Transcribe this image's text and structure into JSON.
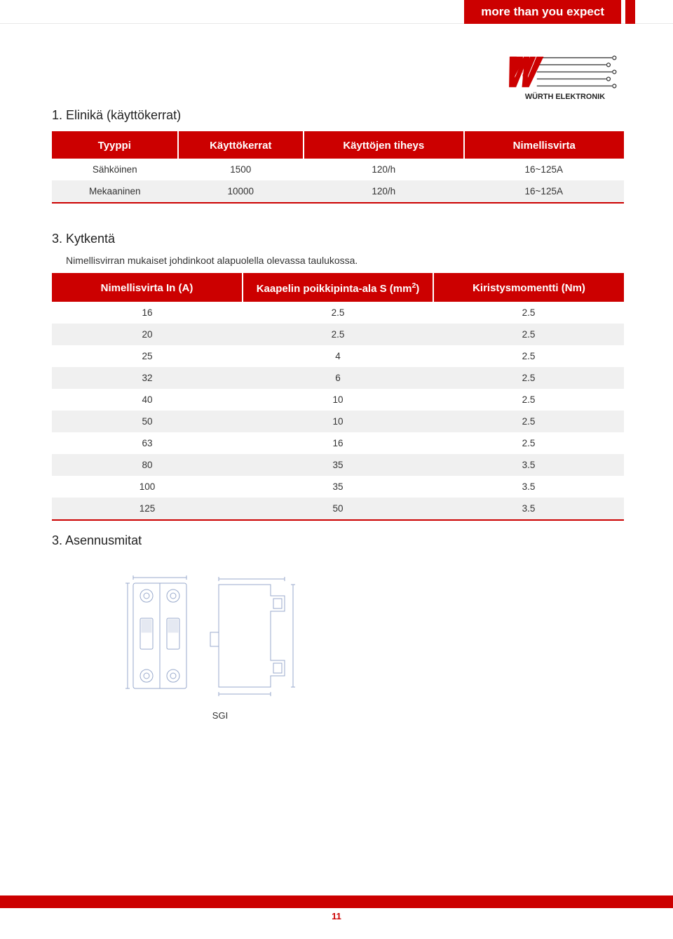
{
  "header": {
    "tagline": "more than you expect",
    "logo_text": "WÜRTH ELEKTRONIK"
  },
  "colors": {
    "brand_red": "#cc0000",
    "row_alt": "#f0f0f0",
    "text": "#333333",
    "white": "#ffffff"
  },
  "section1": {
    "title": "1. Elinikä (käyttökerrat)",
    "columns": [
      "Tyyppi",
      "Käyttökerrat",
      "Käyttöjen tiheys",
      "Nimellisvirta"
    ],
    "rows": [
      [
        "Sähköinen",
        "1500",
        "120/h",
        "16~125A"
      ],
      [
        "Mekaaninen",
        "10000",
        "120/h",
        "16~125A"
      ]
    ]
  },
  "section2": {
    "title": "3. Kytkentä",
    "subnote": "Nimellisvirran mukaiset johdinkoot alapuolella olevassa taulukossa.",
    "col1": "Nimellisvirta In (A)",
    "col2_pre": "Kaapelin poikkipinta-ala S (mm",
    "col2_sup": "2",
    "col2_post": ")",
    "col3": "Kiristysmomentti (Nm)",
    "rows": [
      [
        "16",
        "2.5",
        "2.5"
      ],
      [
        "20",
        "2.5",
        "2.5"
      ],
      [
        "25",
        "4",
        "2.5"
      ],
      [
        "32",
        "6",
        "2.5"
      ],
      [
        "40",
        "10",
        "2.5"
      ],
      [
        "50",
        "10",
        "2.5"
      ],
      [
        "63",
        "16",
        "2.5"
      ],
      [
        "80",
        "35",
        "3.5"
      ],
      [
        "100",
        "35",
        "3.5"
      ],
      [
        "125",
        "50",
        "3.5"
      ]
    ]
  },
  "section3": {
    "title": "3. Asennusmitat",
    "diagram_caption": "SGI"
  },
  "page_number": "11"
}
